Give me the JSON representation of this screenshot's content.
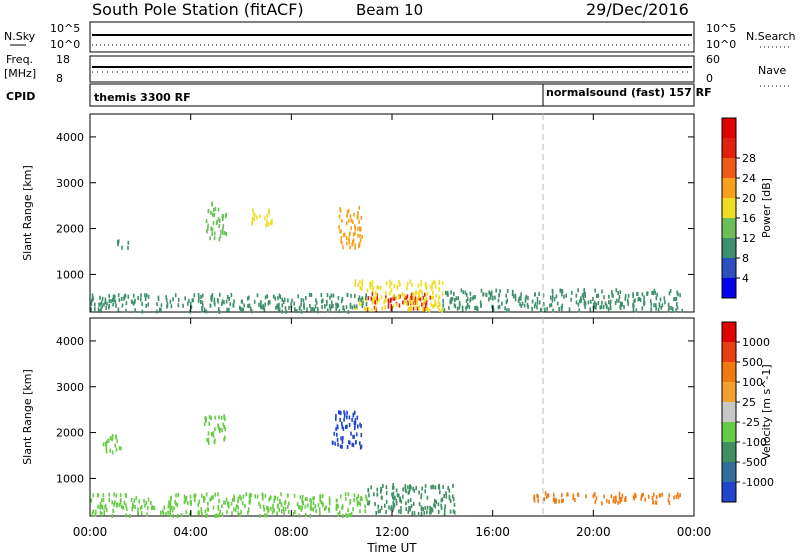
{
  "header": {
    "station": "South Pole Station (fitACF)",
    "beam": "Beam 10",
    "date": "29/Dec/2016"
  },
  "strips": {
    "nsky_label": "N.Sky",
    "nsearch_label": "N.Search",
    "nsky_ticks": [
      "10^5",
      "10^0"
    ],
    "nsearch_ticks": [
      "10^5",
      "10^0"
    ],
    "freq_label": "Freq.",
    "freq_unit": "[MHz]",
    "freq_ticks": [
      "18",
      "8"
    ],
    "nave_label": "Nave",
    "nave_ticks": [
      "60",
      "0"
    ],
    "cpid_label": "CPID",
    "cpid_left": "themis 3300 RF",
    "cpid_right": "normalsound (fast) 157 RF"
  },
  "chart_data": [
    {
      "type": "heatmap",
      "name": "power",
      "ylabel": "Slant Range [km]",
      "xlabel": "Time UT",
      "xlim": [
        0,
        24
      ],
      "ylim": [
        180,
        4500
      ],
      "x_ticks": [
        "00:00",
        "04:00",
        "08:00",
        "12:00",
        "16:00",
        "20:00",
        "00:00"
      ],
      "y_ticks": [
        1000,
        2000,
        3000,
        4000
      ],
      "colorbar": {
        "label": "Power [dB]",
        "ticks": [
          4,
          8,
          12,
          16,
          20,
          24,
          28
        ],
        "colors": [
          "#0000ee",
          "#2d4fc0",
          "#3e8f6e",
          "#6bbf59",
          "#eedd22",
          "#f6a11c",
          "#ef5a18",
          "#e3200f",
          "#e00000"
        ]
      },
      "regions": [
        {
          "t0": 11.0,
          "t1": 13.5,
          "r0": 250,
          "r1": 620,
          "level": 28
        },
        {
          "t0": 10.5,
          "t1": 14.0,
          "r0": 250,
          "r1": 900,
          "level": 16
        },
        {
          "t0": 0.0,
          "t1": 11.0,
          "r0": 220,
          "r1": 600,
          "level": 8
        },
        {
          "t0": 14.0,
          "t1": 23.5,
          "r0": 250,
          "r1": 700,
          "level": 6
        },
        {
          "t0": 1.0,
          "t1": 1.5,
          "r0": 1600,
          "r1": 1800,
          "level": 8
        },
        {
          "t0": 4.6,
          "t1": 5.4,
          "r0": 1800,
          "r1": 2600,
          "level": 10
        },
        {
          "t0": 9.8,
          "t1": 10.8,
          "r0": 1600,
          "r1": 2500,
          "level": 20
        },
        {
          "t0": 6.4,
          "t1": 7.2,
          "r0": 2100,
          "r1": 2500,
          "level": 14
        }
      ]
    },
    {
      "type": "heatmap",
      "name": "velocity",
      "ylabel": "Slant Range [km]",
      "xlabel": "Time UT",
      "xlim": [
        0,
        24
      ],
      "ylim": [
        180,
        4500
      ],
      "x_ticks": [
        "00:00",
        "04:00",
        "08:00",
        "12:00",
        "16:00",
        "20:00",
        "00:00"
      ],
      "y_ticks": [
        1000,
        2000,
        3000,
        4000
      ],
      "colorbar": {
        "label": "Velocity [m s^-1]",
        "ticks": [
          "1000",
          "500",
          "100",
          "25",
          "-25",
          "-100",
          "-500",
          "-1000"
        ],
        "colors": [
          "#2244cc",
          "#2f6f9a",
          "#3f8f5f",
          "#66cc44",
          "#c8c8c8",
          "#f3a030",
          "#f07a10",
          "#e84010",
          "#e00000"
        ]
      },
      "regions": [
        {
          "t0": 11.0,
          "t1": 14.5,
          "r0": 250,
          "r1": 900,
          "level": 100
        },
        {
          "t0": 17.5,
          "t1": 23.5,
          "r0": 500,
          "r1": 720,
          "level": -500
        },
        {
          "t0": 0.0,
          "t1": 11.0,
          "r0": 220,
          "r1": 700,
          "level": 25
        },
        {
          "t0": 9.6,
          "t1": 10.8,
          "r0": 1700,
          "r1": 2500,
          "level": 1000
        },
        {
          "t0": 0.4,
          "t1": 1.2,
          "r0": 1600,
          "r1": 2000,
          "level": 25
        },
        {
          "t0": 4.5,
          "t1": 5.4,
          "r0": 1800,
          "r1": 2400,
          "level": 25
        }
      ]
    }
  ],
  "cpid_switch_time": 18.0
}
